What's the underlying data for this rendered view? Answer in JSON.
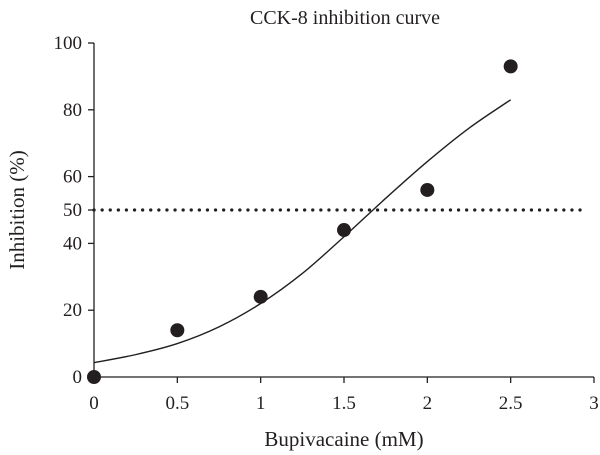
{
  "chart_data": {
    "type": "scatter",
    "title": "CCK-8 inhibition curve",
    "xlabel": "Bupivacaine (mM)",
    "ylabel": "Inhibition (%)",
    "xlim": [
      0,
      3
    ],
    "ylim": [
      0,
      100
    ],
    "xticks": [
      0,
      0.5,
      1,
      1.5,
      2,
      2.5,
      3
    ],
    "xtick_labels": [
      "0",
      "0.5",
      "1",
      "1.5",
      "2",
      "2.5",
      "3"
    ],
    "yticks": [
      0,
      20,
      40,
      50,
      60,
      80,
      100
    ],
    "ytick_labels": [
      "0",
      "20",
      "40",
      "50",
      "60",
      "80",
      "100"
    ],
    "grid": false,
    "points": {
      "x": [
        0,
        0.5,
        1,
        1.5,
        2,
        2.5
      ],
      "y": [
        0,
        14,
        24,
        44,
        56,
        93
      ]
    },
    "fit_curve": {
      "x": [
        0,
        0.25,
        0.5,
        0.75,
        1,
        1.25,
        1.5,
        1.75,
        2,
        2.25,
        2.5
      ],
      "y": [
        4.3,
        6.7,
        10,
        15,
        22,
        31,
        42,
        53.5,
        64.5,
        74.5,
        83
      ]
    },
    "reference_line": {
      "y": 50,
      "style": "dotted"
    },
    "colors": {
      "points": "#231f20",
      "line": "#231f20",
      "axis": "#231f20"
    }
  }
}
